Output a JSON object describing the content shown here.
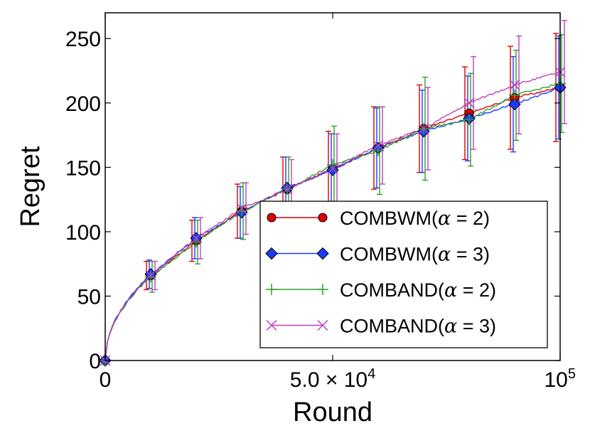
{
  "chart_data": {
    "type": "line",
    "title": "",
    "xlabel": "Round",
    "ylabel": "Regret",
    "xlim": [
      0,
      100000
    ],
    "ylim": [
      0,
      270
    ],
    "grid": false,
    "legend_position": "lower-right",
    "x_ticks": [
      {
        "value": 0,
        "label": "0"
      },
      {
        "value": 50000,
        "label": "5.0 × 10",
        "sup": "4"
      },
      {
        "value": 100000,
        "label": "10",
        "sup": "5"
      }
    ],
    "y_ticks": [
      {
        "value": 0,
        "label": "0"
      },
      {
        "value": 50,
        "label": "50"
      },
      {
        "value": 100,
        "label": "100"
      },
      {
        "value": 150,
        "label": "150"
      },
      {
        "value": 200,
        "label": "200"
      },
      {
        "value": 250,
        "label": "250"
      }
    ],
    "x": [
      0,
      10000,
      20000,
      30000,
      40000,
      50000,
      60000,
      70000,
      80000,
      90000,
      100000
    ],
    "series": [
      {
        "name": "COMBWM(α = 2)",
        "legend_prefix": "COMBWM(",
        "legend_symbol": "α",
        "legend_suffix": " = 2)",
        "color": "#dd0000",
        "marker": "circle",
        "values": [
          0,
          66,
          93,
          116,
          133,
          149,
          165,
          180,
          192,
          204,
          212
        ],
        "errors": [
          0,
          11,
          16,
          21,
          25,
          29,
          32,
          34,
          36,
          40,
          42
        ]
      },
      {
        "name": "COMBWM(α = 3)",
        "legend_prefix": "COMBWM(",
        "legend_symbol": "α",
        "legend_suffix": " = 3)",
        "color": "#1a3cff",
        "marker": "diamond",
        "values": [
          0,
          67,
          95,
          115,
          134,
          148,
          165,
          178,
          188,
          199,
          212
        ],
        "errors": [
          0,
          11,
          16,
          20,
          24,
          28,
          31,
          32,
          33,
          37,
          40
        ]
      },
      {
        "name": "COMBAND(α = 2)",
        "legend_prefix": "COMBAND(",
        "legend_symbol": "α",
        "legend_suffix": " = 2)",
        "color": "#2ca02c",
        "marker": "plus",
        "values": [
          0,
          65,
          92,
          116,
          133,
          152,
          163,
          180,
          187,
          206,
          215
        ],
        "errors": [
          0,
          12,
          17,
          22,
          25,
          30,
          34,
          40,
          36,
          35,
          38
        ]
      },
      {
        "name": "COMBAND(α = 3)",
        "legend_prefix": "COMBAND(",
        "legend_symbol": "α",
        "legend_suffix": " = 3)",
        "color": "#bf3fbf",
        "marker": "x",
        "values": [
          0,
          66,
          95,
          118,
          133,
          149,
          167,
          180,
          200,
          214,
          224
        ],
        "errors": [
          0,
          11,
          16,
          20,
          23,
          27,
          30,
          32,
          36,
          38,
          40
        ]
      }
    ]
  }
}
